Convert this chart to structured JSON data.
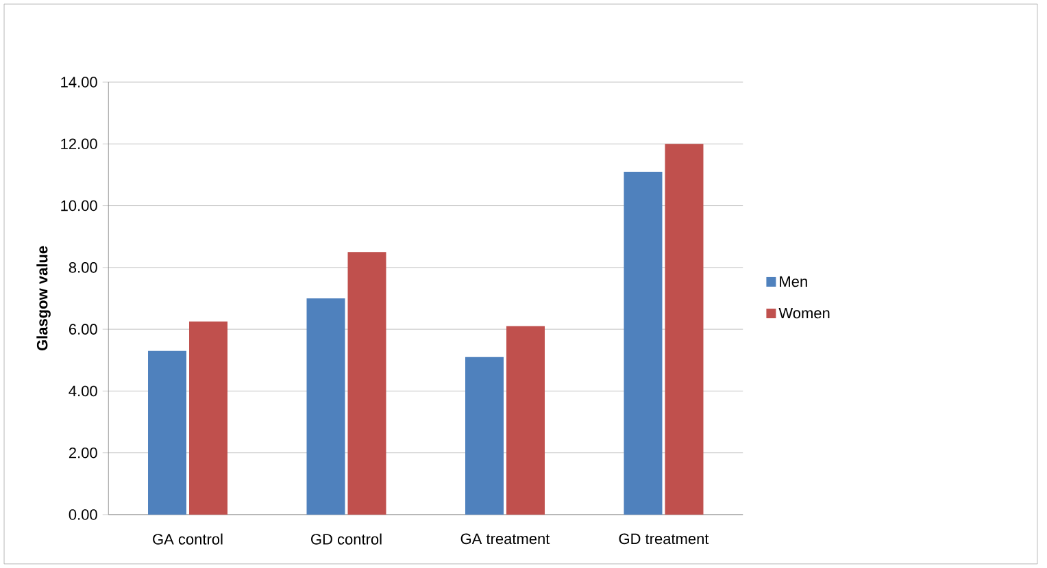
{
  "chart_data": {
    "type": "bar",
    "ylabel": "Glasgow value",
    "categories": [
      "GA control",
      "GD control",
      "GA treatment",
      "GD treatment"
    ],
    "series": [
      {
        "name": "Men",
        "color": "#4f81bd",
        "values": [
          5.3,
          7.0,
          5.1,
          11.1
        ]
      },
      {
        "name": "Women",
        "color": "#c0504d",
        "values": [
          6.25,
          8.5,
          6.1,
          12.0
        ]
      }
    ],
    "ylim": [
      0,
      14
    ],
    "yticks": [
      {
        "value": 0,
        "label": "0.00"
      },
      {
        "value": 2,
        "label": "2.00"
      },
      {
        "value": 4,
        "label": "4.00"
      },
      {
        "value": 6,
        "label": "6.00"
      },
      {
        "value": 8,
        "label": "8.00"
      },
      {
        "value": 10,
        "label": "10.00"
      },
      {
        "value": 12,
        "label": "12.00"
      },
      {
        "value": 14,
        "label": "14.00"
      }
    ],
    "grid": "y",
    "legend": "right"
  }
}
